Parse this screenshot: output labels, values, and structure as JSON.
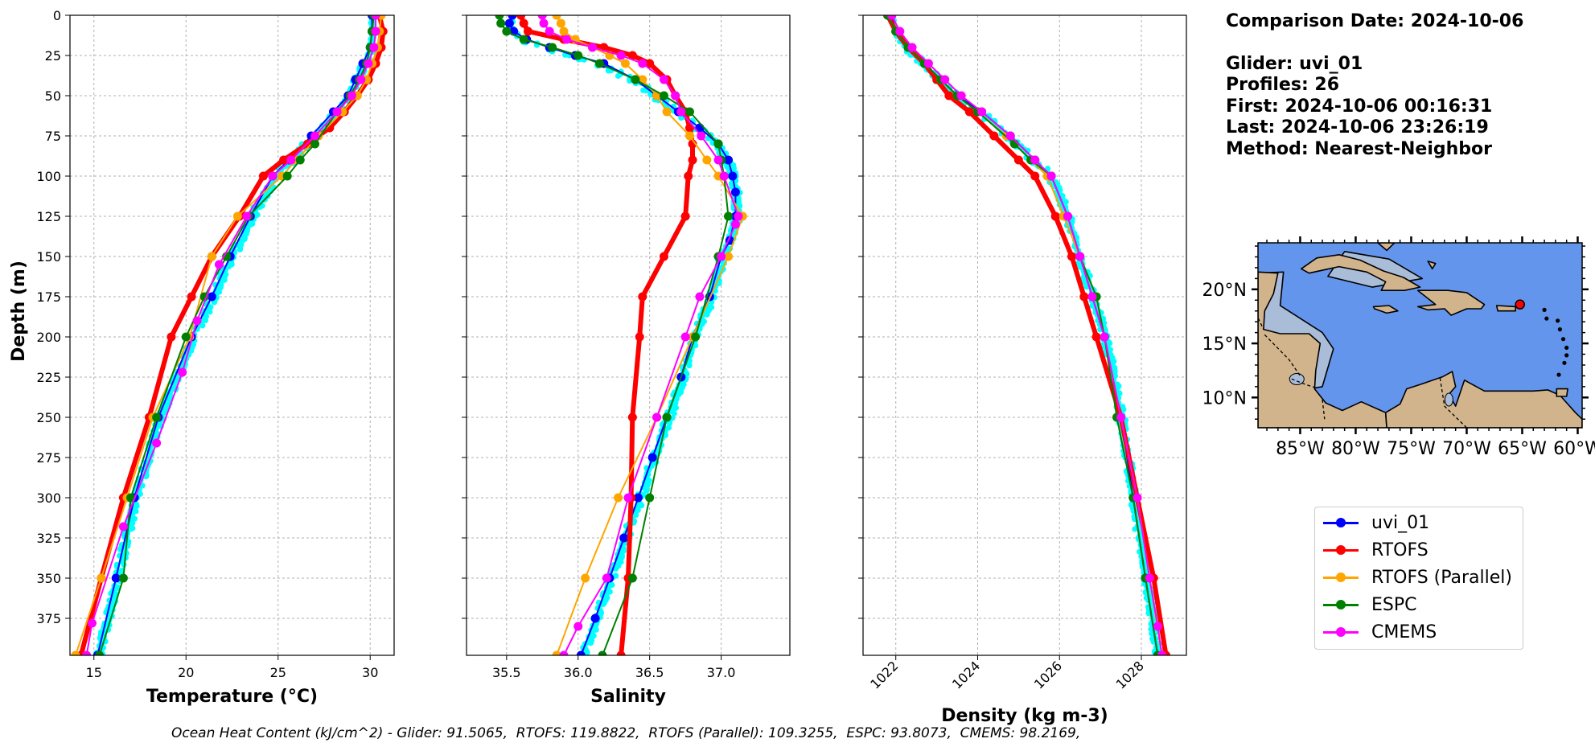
{
  "info": {
    "comparison_date": "Comparison Date: 2024-10-06",
    "glider": "Glider: uvi_01",
    "profiles": "Profiles: 26",
    "first": "First: 2024-10-06 00:16:31",
    "last": "Last: 2024-10-06 23:26:19",
    "method": "Method: Nearest-Neighbor"
  },
  "footer": "Ocean Heat Content (kJ/cm^2) - Glider: 91.5065,  RTOFS: 119.8822,  RTOFS (Parallel): 109.3255,  ESPC: 93.8073,  CMEMS: 98.2169,",
  "colors": {
    "glider_points": "#00ffff",
    "uvi_01": "#0000ff",
    "RTOFS": "#ff0000",
    "RTOFS (Parallel)": "#ffa500",
    "ESPC": "#008000",
    "CMEMS": "#ff00ff",
    "ocean": "#6495ed",
    "land": "#d2b48c",
    "shelf": "#a9bcd8",
    "marker": "#ff0000"
  },
  "legend": [
    {
      "name": "uvi_01",
      "color": "#0000ff"
    },
    {
      "name": "RTOFS",
      "color": "#ff0000"
    },
    {
      "name": "RTOFS (Parallel)",
      "color": "#ffa500"
    },
    {
      "name": "ESPC",
      "color": "#008000"
    },
    {
      "name": "CMEMS",
      "color": "#ff00ff"
    }
  ],
  "chart_data": [
    {
      "type": "line",
      "xlabel": "Temperature (°C)",
      "ylabel": "Depth (m)",
      "xlim": [
        13.7,
        31.3
      ],
      "ylim": [
        398,
        0
      ],
      "xticks": [
        15,
        20,
        25,
        30
      ],
      "yticks": [
        0,
        25,
        50,
        75,
        100,
        125,
        150,
        175,
        200,
        225,
        250,
        275,
        300,
        325,
        350,
        375
      ],
      "grid": true,
      "series": [
        {
          "name": "uvi_01",
          "depth": [
            0,
            10,
            20,
            30,
            40,
            50,
            60,
            75,
            90,
            100,
            125,
            150,
            175,
            200,
            250,
            300,
            350,
            398
          ],
          "values": [
            30.1,
            30.1,
            30.0,
            29.6,
            29.2,
            28.8,
            28.0,
            26.8,
            25.6,
            24.7,
            23.5,
            22.4,
            21.4,
            20.3,
            18.5,
            17.2,
            16.2,
            15.2
          ]
        },
        {
          "name": "RTOFS",
          "depth": [
            0,
            10,
            20,
            30,
            40,
            50,
            60,
            70,
            80,
            90,
            100,
            125,
            150,
            175,
            200,
            250,
            300,
            350,
            398
          ],
          "values": [
            30.5,
            30.7,
            30.6,
            30.3,
            29.9,
            29.3,
            28.6,
            27.8,
            26.6,
            25.3,
            24.2,
            22.9,
            21.4,
            20.3,
            19.2,
            18.0,
            16.6,
            15.4,
            14.3
          ]
        },
        {
          "name": "RTOFS (Parallel)",
          "depth": [
            0,
            10,
            20,
            30,
            40,
            50,
            60,
            75,
            90,
            100,
            125,
            150,
            200,
            250,
            300,
            350,
            398
          ],
          "values": [
            30.6,
            30.5,
            30.4,
            30.1,
            29.8,
            29.3,
            28.5,
            27.2,
            26.0,
            25.2,
            22.8,
            21.4,
            20.2,
            18.2,
            16.8,
            15.4,
            14.0
          ]
        },
        {
          "name": "ESPC",
          "depth": [
            0,
            10,
            20,
            30,
            40,
            50,
            60,
            80,
            90,
            100,
            125,
            150,
            175,
            200,
            250,
            300,
            350,
            398
          ],
          "values": [
            30.2,
            30.1,
            30.0,
            29.8,
            29.4,
            28.9,
            28.2,
            27.0,
            26.2,
            25.5,
            23.4,
            22.2,
            21.0,
            20.0,
            18.4,
            17.0,
            16.6,
            15.3
          ]
        },
        {
          "name": "CMEMS",
          "depth": [
            0,
            10,
            20,
            30,
            40,
            50,
            60,
            75,
            90,
            100,
            125,
            155,
            190,
            222,
            266,
            318,
            378,
            398
          ],
          "values": [
            30.3,
            30.3,
            30.2,
            29.9,
            29.5,
            29.0,
            28.2,
            27.0,
            25.7,
            24.7,
            23.3,
            21.8,
            20.6,
            19.8,
            18.4,
            16.6,
            14.9,
            14.6
          ]
        }
      ]
    },
    {
      "type": "line",
      "xlabel": "Salinity",
      "xlim": [
        35.22,
        37.48
      ],
      "ylim": [
        398,
        0
      ],
      "xticks": [
        35.5,
        36.0,
        36.5,
        37.0
      ],
      "grid": true,
      "series": [
        {
          "name": "uvi_01",
          "depth": [
            0,
            5,
            10,
            15,
            20,
            25,
            30,
            40,
            50,
            60,
            70,
            80,
            90,
            100,
            110,
            125,
            140,
            150,
            175,
            200,
            225,
            250,
            275,
            300,
            325,
            350,
            375,
            398
          ],
          "values": [
            35.54,
            35.52,
            35.55,
            35.64,
            35.8,
            35.98,
            36.18,
            36.4,
            36.55,
            36.7,
            36.85,
            36.98,
            37.05,
            37.08,
            37.1,
            37.1,
            37.06,
            37.0,
            36.92,
            36.8,
            36.72,
            36.62,
            36.52,
            36.42,
            36.32,
            36.22,
            36.12,
            36.02
          ]
        },
        {
          "name": "RTOFS",
          "depth": [
            0,
            5,
            10,
            15,
            20,
            25,
            30,
            40,
            50,
            60,
            70,
            80,
            90,
            100,
            125,
            150,
            175,
            200,
            250,
            300,
            350,
            398
          ],
          "values": [
            35.6,
            35.62,
            35.65,
            35.9,
            36.18,
            36.38,
            36.5,
            36.62,
            36.68,
            36.75,
            36.78,
            36.8,
            36.8,
            36.77,
            36.75,
            36.6,
            36.45,
            36.43,
            36.38,
            36.37,
            36.35,
            36.3
          ]
        },
        {
          "name": "RTOFS (Parallel)",
          "depth": [
            0,
            5,
            10,
            15,
            20,
            25,
            30,
            40,
            50,
            60,
            75,
            90,
            100,
            125,
            150,
            200,
            250,
            300,
            350,
            398
          ],
          "values": [
            35.85,
            35.88,
            35.9,
            35.98,
            36.1,
            36.22,
            36.33,
            36.45,
            36.55,
            36.62,
            36.78,
            36.9,
            36.98,
            37.15,
            37.05,
            36.8,
            36.55,
            36.28,
            36.05,
            35.85
          ]
        },
        {
          "name": "ESPC",
          "depth": [
            0,
            5,
            10,
            15,
            20,
            25,
            30,
            40,
            50,
            60,
            80,
            90,
            100,
            125,
            150,
            200,
            250,
            300,
            350,
            398
          ],
          "values": [
            35.45,
            35.46,
            35.5,
            35.62,
            35.82,
            36.0,
            36.15,
            36.4,
            36.6,
            36.78,
            36.98,
            37.0,
            37.02,
            37.05,
            36.98,
            36.82,
            36.62,
            36.5,
            36.38,
            36.17
          ]
        },
        {
          "name": "CMEMS",
          "depth": [
            0,
            5,
            10,
            15,
            20,
            25,
            30,
            40,
            50,
            60,
            75,
            90,
            100,
            125,
            130,
            150,
            175,
            200,
            250,
            300,
            350,
            380,
            398
          ],
          "values": [
            35.75,
            35.76,
            35.8,
            35.92,
            36.1,
            36.3,
            36.45,
            36.6,
            36.68,
            36.72,
            36.86,
            36.98,
            37.02,
            37.12,
            37.1,
            37.0,
            36.85,
            36.75,
            36.55,
            36.35,
            36.2,
            36.0,
            35.9
          ]
        }
      ]
    },
    {
      "type": "line",
      "xlabel": "Density (kg m-3)",
      "xlim": [
        1021.2,
        1029.1
      ],
      "ylim": [
        398,
        0
      ],
      "xticks": [
        1022,
        1024,
        1026,
        1028
      ],
      "grid": true,
      "series": [
        {
          "name": "uvi_01",
          "depth": [
            0,
            10,
            20,
            30,
            40,
            50,
            60,
            75,
            90,
            100,
            125,
            150,
            175,
            200,
            250,
            300,
            350,
            398
          ],
          "values": [
            1021.9,
            1022.0,
            1022.3,
            1022.7,
            1023.1,
            1023.5,
            1024.1,
            1024.8,
            1025.4,
            1025.8,
            1026.2,
            1026.5,
            1026.8,
            1027.1,
            1027.5,
            1027.8,
            1028.1,
            1028.4
          ]
        },
        {
          "name": "RTOFS",
          "depth": [
            0,
            10,
            20,
            30,
            40,
            50,
            60,
            75,
            90,
            100,
            125,
            150,
            175,
            200,
            250,
            300,
            350,
            398
          ],
          "values": [
            1021.8,
            1022.0,
            1022.3,
            1022.7,
            1023.0,
            1023.3,
            1023.8,
            1024.4,
            1025.0,
            1025.4,
            1025.9,
            1026.3,
            1026.6,
            1026.9,
            1027.5,
            1027.9,
            1028.3,
            1028.6
          ]
        },
        {
          "name": "RTOFS (Parallel)",
          "depth": [
            0,
            10,
            20,
            30,
            40,
            50,
            60,
            75,
            90,
            100,
            125,
            150,
            175,
            200,
            250,
            300,
            350,
            398
          ],
          "values": [
            1021.8,
            1022.0,
            1022.3,
            1022.7,
            1023.1,
            1023.5,
            1024.0,
            1024.7,
            1025.3,
            1025.7,
            1026.1,
            1026.5,
            1026.9,
            1027.1,
            1027.5,
            1027.9,
            1028.2,
            1028.5
          ]
        },
        {
          "name": "ESPC",
          "depth": [
            0,
            10,
            20,
            30,
            40,
            50,
            60,
            80,
            90,
            100,
            125,
            150,
            175,
            200,
            250,
            300,
            350,
            398
          ],
          "values": [
            1021.8,
            1022.0,
            1022.3,
            1022.7,
            1023.1,
            1023.5,
            1024.0,
            1024.9,
            1025.3,
            1025.8,
            1026.2,
            1026.5,
            1026.9,
            1027.1,
            1027.4,
            1027.8,
            1028.1,
            1028.4
          ]
        },
        {
          "name": "CMEMS",
          "depth": [
            0,
            10,
            20,
            30,
            40,
            50,
            60,
            75,
            90,
            100,
            125,
            150,
            175,
            200,
            250,
            300,
            350,
            380,
            398
          ],
          "values": [
            1021.9,
            1022.1,
            1022.4,
            1022.8,
            1023.2,
            1023.6,
            1024.1,
            1024.8,
            1025.4,
            1025.8,
            1026.2,
            1026.5,
            1026.8,
            1027.1,
            1027.5,
            1027.9,
            1028.2,
            1028.4,
            1028.5
          ]
        }
      ]
    }
  ],
  "map": {
    "lon_ticks": [
      "85°W",
      "80°W",
      "75°W",
      "70°W",
      "65°W",
      "60°W"
    ],
    "lat_ticks": [
      "20°N",
      "15°N",
      "10°N"
    ],
    "lon_values": [
      -85,
      -80,
      -75,
      -70,
      -65,
      -60
    ],
    "lat_values": [
      20,
      15,
      10
    ],
    "lon_range": [
      -88.8,
      -59.6
    ],
    "lat_range": [
      7.2,
      24.3
    ],
    "glider_position": {
      "lon": -65.2,
      "lat": 18.6
    }
  }
}
